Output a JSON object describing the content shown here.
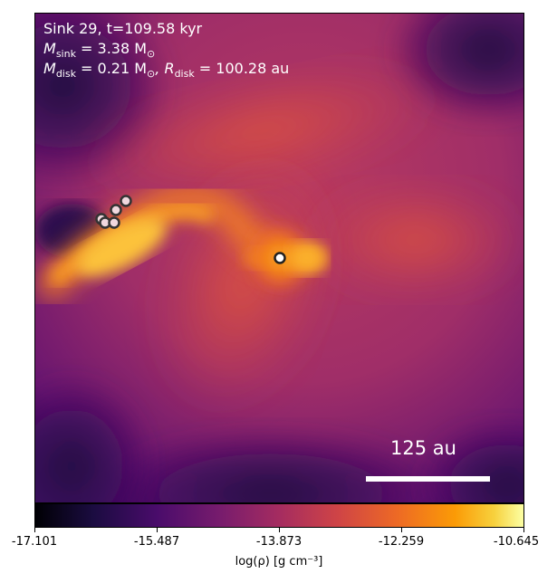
{
  "figure": {
    "sink_label": "Sink 29, t=109.58 kyr",
    "msink_symbol": "M",
    "msink_sub": "sink",
    "msink_value": " = 3.38 M",
    "msink_unit_sub": "⊙",
    "mdisk_symbol": "M",
    "mdisk_sub": "disk",
    "mdisk_value": " = 0.21 M",
    "mdisk_unit_sub": "⊙",
    "rdisk_symbol": ", R",
    "rdisk_sub": "disk",
    "rdisk_value": " = 100.28 au",
    "scale_bar_label": "125 au"
  },
  "colorbar": {
    "ticks": [
      "-17.101",
      "-15.487",
      "-13.873",
      "-12.259",
      "-10.645"
    ],
    "label": "log(ρ) [g cm⁻³]"
  }
}
